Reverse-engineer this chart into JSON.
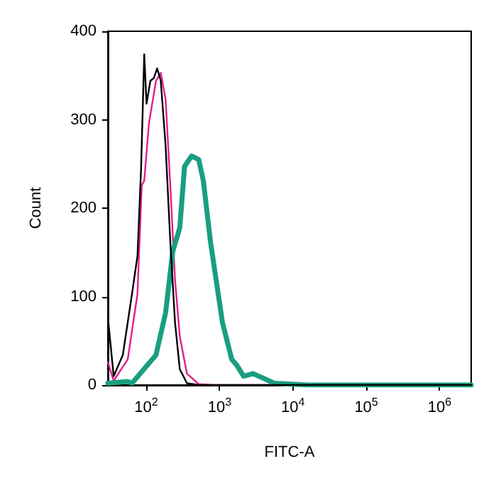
{
  "chart_data": {
    "type": "line",
    "xlabel": "FITC-A",
    "ylabel": "Count",
    "log": "x",
    "grid": false,
    "marker": "none",
    "line_style": "solid",
    "xlim": [
      30,
      2700000
    ],
    "xticks": [
      {
        "value": 100,
        "label": "10$^{2}$"
      },
      {
        "value": 1000,
        "label": "10$^{3}$"
      },
      {
        "value": 10000,
        "label": "10$^{4}$"
      },
      {
        "value": 100000,
        "label": "10$^{5}$"
      },
      {
        "value": 1000000,
        "label": "10$^{6}$"
      }
    ],
    "ylim": [
      0,
      400
    ],
    "yticks": [
      0,
      100,
      200,
      300,
      400
    ],
    "series": [
      {
        "color": "#000000",
        "x": [
          30,
          36,
          48,
          64,
          76,
          85,
          94,
          101,
          114,
          127,
          141,
          158,
          184,
          213,
          247,
          287,
          359,
          520,
          2700000
        ],
        "values": [
          77,
          10,
          34,
          103,
          146,
          243,
          374,
          318,
          344,
          347,
          358,
          344,
          270,
          162,
          71,
          18,
          2,
          0,
          0
        ]
      },
      {
        "color": "#e0208c",
        "x": [
          30,
          36,
          56,
          76,
          87,
          94,
          109,
          136,
          158,
          184,
          213,
          247,
          287,
          359,
          520,
          811,
          2700000
        ],
        "values": [
          26,
          5,
          29,
          103,
          226,
          231,
          296,
          344,
          353,
          323,
          226,
          119,
          55,
          13,
          1,
          0,
          0
        ]
      },
      {
        "color": "#1a9e80",
        "x": [
          30,
          56,
          64,
          136,
          184,
          230,
          287,
          333,
          416,
          520,
          601,
          752,
          1094,
          1466,
          1700,
          2130,
          2860,
          5600,
          15800,
          2700000
        ],
        "values": [
          2,
          4,
          2,
          34,
          82,
          151,
          178,
          247,
          259,
          255,
          231,
          162,
          71,
          29,
          23,
          10,
          13,
          2,
          0,
          0
        ]
      }
    ]
  }
}
